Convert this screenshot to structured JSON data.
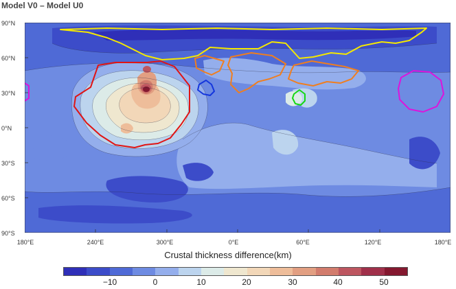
{
  "title": "Model V0 – Model U0",
  "lat_labels": [
    "90°N",
    "60°N",
    "30°N",
    "0°N",
    "30°S",
    "60°S",
    "90°S"
  ],
  "lon_labels": [
    "180°E",
    "240°E",
    "300°E",
    "0°E",
    "60°E",
    "120°E",
    "180°E"
  ],
  "colorbar": {
    "title": "Crustal thickness difference(km)",
    "ticks": [
      "−10",
      "0",
      "10",
      "20",
      "30",
      "40",
      "50"
    ],
    "colors": [
      "#2f2fb8",
      "#3c4cc9",
      "#4f6ad6",
      "#6e8be2",
      "#94aeec",
      "#bcd4ee",
      "#dcebe8",
      "#efe7cf",
      "#f2d7b8",
      "#eebd9a",
      "#e29f82",
      "#d27c6d",
      "#bd5660",
      "#a0304a",
      "#84182f"
    ]
  },
  "outline_colors": {
    "red": "#e01414",
    "yellow": "#f5e800",
    "orange": "#f07e1e",
    "blue": "#1436dc",
    "green": "#14d814",
    "magenta": "#dc14dc"
  }
}
